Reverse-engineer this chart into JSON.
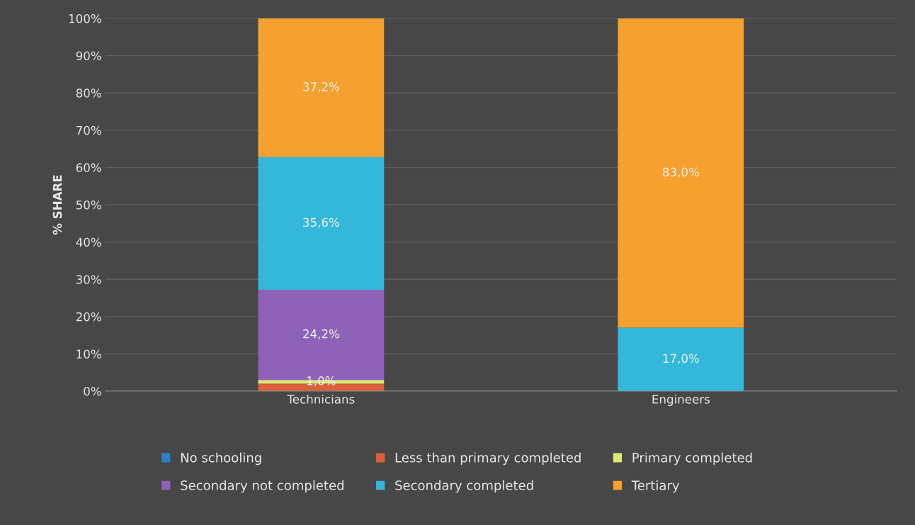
{
  "chart_data": {
    "type": "bar",
    "stacked": true,
    "ylabel": "% SHARE",
    "categories": [
      "Technicians",
      "Engineers"
    ],
    "series": [
      {
        "name": "No schooling",
        "color": "#2f7fc9",
        "values": [
          null,
          null
        ],
        "value_labels": [
          null,
          null
        ]
      },
      {
        "name": "Less than primary completed",
        "color": "#d9603a",
        "values": [
          2.0,
          null
        ],
        "value_labels": [
          null,
          null
        ]
      },
      {
        "name": "Primary completed",
        "color": "#dfe87a",
        "values": [
          1.0,
          null
        ],
        "value_labels": [
          "1,0%",
          null
        ]
      },
      {
        "name": "Secondary not completed",
        "color": "#8e62b8",
        "values": [
          24.2,
          null
        ],
        "value_labels": [
          "24,2%",
          null
        ]
      },
      {
        "name": "Secondary completed",
        "color": "#33b8dc",
        "values": [
          35.6,
          17.0
        ],
        "value_labels": [
          "35,6%",
          "17,0%"
        ]
      },
      {
        "name": "Tertiary",
        "color": "#f5a02f",
        "values": [
          37.2,
          83.0
        ],
        "value_labels": [
          "37,2%",
          "83,0%"
        ]
      }
    ],
    "ylim": [
      0,
      100
    ],
    "yticks": [
      {
        "value": 0,
        "label": "0%"
      },
      {
        "value": 10,
        "label": "10%"
      },
      {
        "value": 20,
        "label": "20%"
      },
      {
        "value": 30,
        "label": "30%"
      },
      {
        "value": 40,
        "label": "40%"
      },
      {
        "value": 50,
        "label": "50%"
      },
      {
        "value": 60,
        "label": "60%"
      },
      {
        "value": 70,
        "label": "70%"
      },
      {
        "value": 80,
        "label": "80%"
      },
      {
        "value": 90,
        "label": "90%"
      },
      {
        "value": 100,
        "label": "100%"
      }
    ],
    "grid": "y",
    "legend": "bottom"
  }
}
